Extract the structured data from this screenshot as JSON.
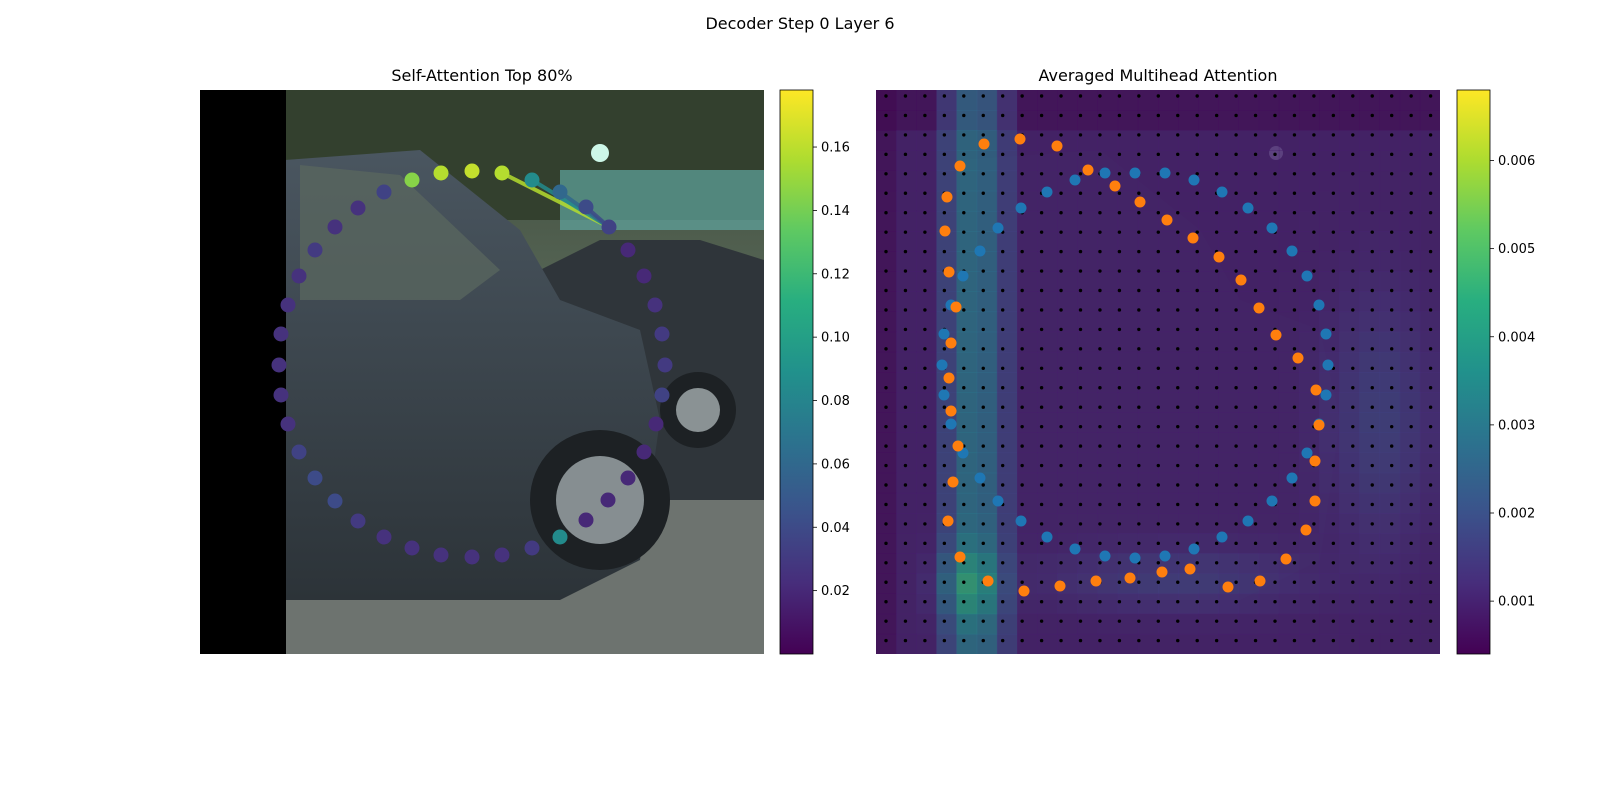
{
  "figure": {
    "suptitle": "Decoder Step 0 Layer 6"
  },
  "chart_data": [
    {
      "type": "scatter",
      "title": "Self-Attention Top 80%",
      "background": "camera image of a dark grey car (SUV) with left black padding",
      "colormap": "viridis",
      "colorbar": {
        "range": [
          0.0,
          0.178
        ],
        "ticks": [
          0.02,
          0.04,
          0.06,
          0.08,
          0.1,
          0.12,
          0.14,
          0.16
        ],
        "tick_labels": [
          "0.02",
          "0.04",
          "0.06",
          "0.08",
          "0.10",
          "0.12",
          "0.14",
          "0.16"
        ]
      },
      "query_point_index": 7,
      "points": [
        {
          "x": 412,
          "y": 180,
          "v": 0.145
        },
        {
          "x": 441,
          "y": 173,
          "v": 0.158
        },
        {
          "x": 472,
          "y": 171,
          "v": 0.162
        },
        {
          "x": 502,
          "y": 173,
          "v": 0.158
        },
        {
          "x": 532,
          "y": 180,
          "v": 0.085
        },
        {
          "x": 560,
          "y": 192,
          "v": 0.06
        },
        {
          "x": 586,
          "y": 207,
          "v": 0.04
        },
        {
          "x": 609,
          "y": 227,
          "v": 0.035
        },
        {
          "x": 628,
          "y": 250,
          "v": 0.02
        },
        {
          "x": 644,
          "y": 276,
          "v": 0.02
        },
        {
          "x": 655,
          "y": 305,
          "v": 0.025
        },
        {
          "x": 662,
          "y": 334,
          "v": 0.03
        },
        {
          "x": 665,
          "y": 365,
          "v": 0.03
        },
        {
          "x": 662,
          "y": 395,
          "v": 0.035
        },
        {
          "x": 656,
          "y": 424,
          "v": 0.02
        },
        {
          "x": 644,
          "y": 452,
          "v": 0.02
        },
        {
          "x": 628,
          "y": 478,
          "v": 0.02
        },
        {
          "x": 608,
          "y": 500,
          "v": 0.02
        },
        {
          "x": 586,
          "y": 520,
          "v": 0.02
        },
        {
          "x": 560,
          "y": 537,
          "v": 0.085
        },
        {
          "x": 532,
          "y": 548,
          "v": 0.03
        },
        {
          "x": 502,
          "y": 555,
          "v": 0.025
        },
        {
          "x": 472,
          "y": 557,
          "v": 0.025
        },
        {
          "x": 441,
          "y": 555,
          "v": 0.025
        },
        {
          "x": 412,
          "y": 548,
          "v": 0.025
        },
        {
          "x": 384,
          "y": 537,
          "v": 0.025
        },
        {
          "x": 358,
          "y": 521,
          "v": 0.03
        },
        {
          "x": 335,
          "y": 501,
          "v": 0.04
        },
        {
          "x": 315,
          "y": 478,
          "v": 0.04
        },
        {
          "x": 299,
          "y": 452,
          "v": 0.035
        },
        {
          "x": 288,
          "y": 424,
          "v": 0.025
        },
        {
          "x": 281,
          "y": 395,
          "v": 0.025
        },
        {
          "x": 279,
          "y": 365,
          "v": 0.025
        },
        {
          "x": 281,
          "y": 334,
          "v": 0.025
        },
        {
          "x": 288,
          "y": 305,
          "v": 0.025
        },
        {
          "x": 299,
          "y": 276,
          "v": 0.025
        },
        {
          "x": 315,
          "y": 250,
          "v": 0.03
        },
        {
          "x": 335,
          "y": 227,
          "v": 0.025
        },
        {
          "x": 358,
          "y": 208,
          "v": 0.025
        },
        {
          "x": 384,
          "y": 192,
          "v": 0.035
        }
      ],
      "lines_from_query_to": [
        3,
        4,
        5,
        6,
        7
      ]
    },
    {
      "type": "heatmap",
      "title": "Averaged Multihead Attention",
      "background": "darkened camera image overlaid with attention heatmap and black reference-point grid",
      "colormap": "viridis",
      "colorbar": {
        "range": [
          0.0004,
          0.0068
        ],
        "ticks": [
          0.001,
          0.002,
          0.003,
          0.004,
          0.005,
          0.006
        ],
        "tick_labels": [
          "0.001",
          "0.002",
          "0.003",
          "0.004",
          "0.005",
          "0.006"
        ]
      },
      "series": [
        {
          "color": "#1f77b4",
          "points": [
            [
              1105,
              173
            ],
            [
              1135,
              173
            ],
            [
              1165,
              173
            ],
            [
              1194,
              180
            ],
            [
              1222,
              192
            ],
            [
              1248,
              208
            ],
            [
              1272,
              228
            ],
            [
              1292,
              251
            ],
            [
              1307,
              276
            ],
            [
              1319,
              305
            ],
            [
              1326,
              334
            ],
            [
              1328,
              365
            ],
            [
              1326,
              395
            ],
            [
              1319,
              424
            ],
            [
              1307,
              453
            ],
            [
              1292,
              478
            ],
            [
              1272,
              501
            ],
            [
              1248,
              521
            ],
            [
              1222,
              537
            ],
            [
              1194,
              549
            ],
            [
              1165,
              556
            ],
            [
              1135,
              558
            ],
            [
              1105,
              556
            ],
            [
              1075,
              549
            ],
            [
              1047,
              537
            ],
            [
              1021,
              521
            ],
            [
              998,
              501
            ],
            [
              980,
              478
            ],
            [
              963,
              453
            ],
            [
              951,
              424
            ],
            [
              944,
              395
            ],
            [
              942,
              365
            ],
            [
              944,
              334
            ],
            [
              951,
              305
            ],
            [
              963,
              276
            ],
            [
              980,
              251
            ],
            [
              998,
              228
            ],
            [
              1021,
              208
            ],
            [
              1047,
              192
            ],
            [
              1075,
              180
            ]
          ]
        },
        {
          "color": "#ff7f0e",
          "points": [
            [
              984,
              144
            ],
            [
              1020,
              139
            ],
            [
              1057,
              146
            ],
            [
              1088,
              170
            ],
            [
              1115,
              186
            ],
            [
              1140,
              202
            ],
            [
              1167,
              220
            ],
            [
              1193,
              238
            ],
            [
              1219,
              257
            ],
            [
              1241,
              280
            ],
            [
              1259,
              308
            ],
            [
              1276,
              335
            ],
            [
              1298,
              358
            ],
            [
              1316,
              390
            ],
            [
              1319,
              425
            ],
            [
              1315,
              461
            ],
            [
              1315,
              501
            ],
            [
              1306,
              530
            ],
            [
              1286,
              559
            ],
            [
              1260,
              581
            ],
            [
              1228,
              587
            ],
            [
              1190,
              569
            ],
            [
              1162,
              572
            ],
            [
              1130,
              578
            ],
            [
              1096,
              581
            ],
            [
              1060,
              586
            ],
            [
              1024,
              591
            ],
            [
              988,
              581
            ],
            [
              960,
              557
            ],
            [
              948,
              521
            ],
            [
              953,
              482
            ],
            [
              958,
              446
            ],
            [
              951,
              411
            ],
            [
              949,
              378
            ],
            [
              951,
              343
            ],
            [
              956,
              307
            ],
            [
              949,
              272
            ],
            [
              945,
              231
            ],
            [
              947,
              197
            ],
            [
              960,
              166
            ]
          ]
        }
      ],
      "heatmap_profile": "high attention in vertical band near x≈940-1000 px, peak near lower-left (≈0.0068)"
    }
  ]
}
